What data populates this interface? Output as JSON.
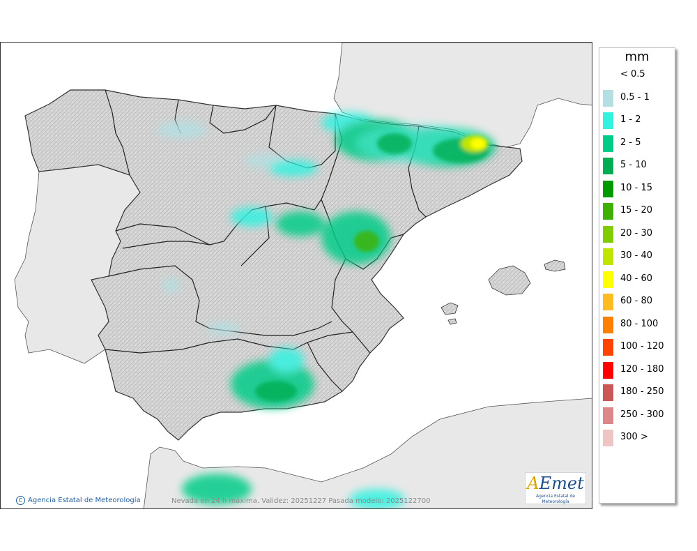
{
  "map": {
    "credit": "Agencia Estatal de Meteorología",
    "footer": "Nevada en 24 h máxima. Validez: 20251227 Pasada modelo: 2025122700",
    "logo": {
      "name": "AEmet",
      "subtitle": "Agencia Estatal de Meteorología"
    },
    "colors": {
      "sea": "#ffffff",
      "land_foreign": "#e8e8e8",
      "land_spain": "#d2d2d2",
      "border": "#222222"
    }
  },
  "legend": {
    "unit": "mm",
    "items": [
      {
        "label": "< 0.5",
        "color": ""
      },
      {
        "label": "0.5 - 1",
        "color": "#b3dfe2"
      },
      {
        "label": "1 - 2",
        "color": "#33f2e0"
      },
      {
        "label": "2 - 5",
        "color": "#00cc88"
      },
      {
        "label": "5 - 10",
        "color": "#00ad52"
      },
      {
        "label": "10 - 15",
        "color": "#009900"
      },
      {
        "label": "15 - 20",
        "color": "#40b000"
      },
      {
        "label": "20 - 30",
        "color": "#80cc00"
      },
      {
        "label": "30 - 40",
        "color": "#c0e400"
      },
      {
        "label": "40 - 60",
        "color": "#ffff00"
      },
      {
        "label": "60 - 80",
        "color": "#ffbb22"
      },
      {
        "label": "80 - 100",
        "color": "#ff8000"
      },
      {
        "label": "100 - 120",
        "color": "#ff4400"
      },
      {
        "label": "120 - 180",
        "color": "#ff0000"
      },
      {
        "label": "180 - 250",
        "color": "#cc5555"
      },
      {
        "label": "250 - 300",
        "color": "#dd8888"
      },
      {
        "label": "300 >",
        "color": "#eec4c4"
      }
    ]
  }
}
